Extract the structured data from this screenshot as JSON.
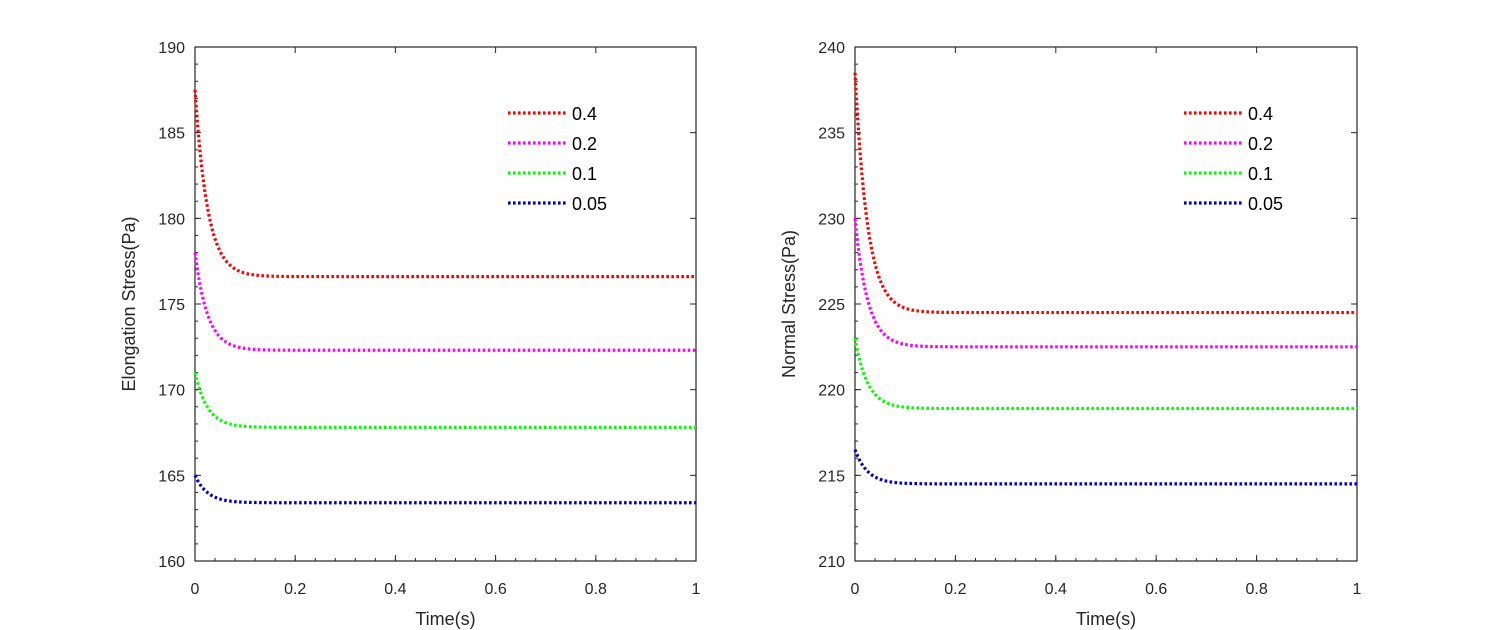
{
  "chart_data": [
    {
      "type": "line",
      "title": "",
      "xlabel": "Time(s)",
      "ylabel": "Elongation Stress(Pa)",
      "xlim": [
        0,
        1
      ],
      "ylim": [
        160,
        190
      ],
      "xticks": [
        0,
        0.2,
        0.4,
        0.6,
        0.8,
        1
      ],
      "xtick_labels": [
        "0",
        "0.2",
        "0.4",
        "0.6",
        "0.8",
        "1"
      ],
      "yticks": [
        160,
        165,
        170,
        175,
        180,
        185,
        190
      ],
      "ytick_labels": [
        "160",
        "165",
        "170",
        "175",
        "180",
        "185",
        "190"
      ],
      "legend_position": "top-right",
      "line_style": "dotted",
      "decay_time_constant_s": 0.025,
      "series": [
        {
          "name": "0.4",
          "color": "#ff0000",
          "initial_value": 187.5,
          "steady_value": 176.6
        },
        {
          "name": "0.2",
          "color": "#ff00ff",
          "initial_value": 178.0,
          "steady_value": 172.3
        },
        {
          "name": "0.1",
          "color": "#00ff00",
          "initial_value": 171.0,
          "steady_value": 167.8
        },
        {
          "name": "0.05",
          "color": "#0000cc",
          "initial_value": 165.0,
          "steady_value": 163.4
        }
      ]
    },
    {
      "type": "line",
      "title": "",
      "xlabel": "Time(s)",
      "ylabel": "Normal Stress(Pa)",
      "xlim": [
        0,
        1
      ],
      "ylim": [
        210,
        240
      ],
      "xticks": [
        0,
        0.2,
        0.4,
        0.6,
        0.8,
        1
      ],
      "xtick_labels": [
        "0",
        "0.2",
        "0.4",
        "0.6",
        "0.8",
        "1"
      ],
      "yticks": [
        210,
        215,
        220,
        225,
        230,
        235,
        240
      ],
      "ytick_labels": [
        "210",
        "215",
        "220",
        "225",
        "230",
        "235",
        "240"
      ],
      "legend_position": "top-right",
      "line_style": "dotted",
      "decay_time_constant_s": 0.025,
      "series": [
        {
          "name": "0.4",
          "color": "#ff0000",
          "initial_value": 238.5,
          "steady_value": 224.5
        },
        {
          "name": "0.2",
          "color": "#ff00ff",
          "initial_value": 230.0,
          "steady_value": 222.5
        },
        {
          "name": "0.1",
          "color": "#00ff00",
          "initial_value": 223.0,
          "steady_value": 218.9
        },
        {
          "name": "0.05",
          "color": "#0000cc",
          "initial_value": 216.5,
          "steady_value": 214.5
        }
      ]
    }
  ]
}
